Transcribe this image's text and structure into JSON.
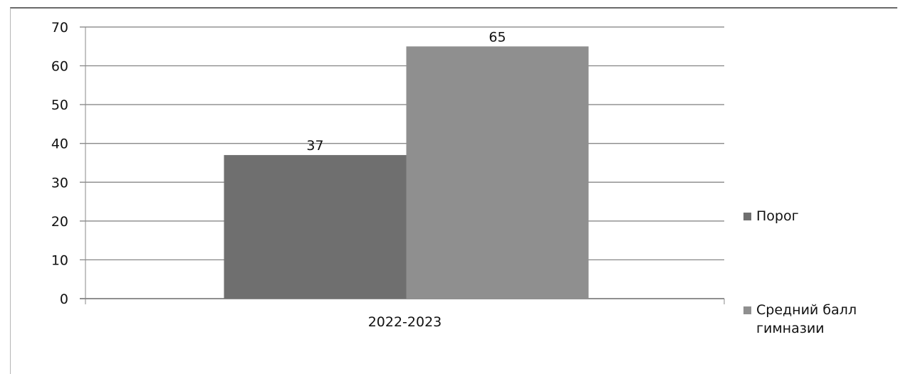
{
  "chart_data": {
    "type": "bar",
    "categories": [
      "2022-2023"
    ],
    "series": [
      {
        "name": "Порог",
        "values": [
          37
        ],
        "label_lines": [
          "Порог"
        ],
        "color": "#6f6f6f"
      },
      {
        "name": "Средний балл гимназии",
        "values": [
          65
        ],
        "label_lines": [
          "Средний балл",
          "гимназии"
        ],
        "color": "#8f8f8f"
      }
    ],
    "data_labels": [
      "37",
      "65"
    ],
    "yticks": [
      0,
      10,
      20,
      30,
      40,
      50,
      60,
      70
    ],
    "ylim": [
      0,
      70
    ],
    "grid": true,
    "legend_position": "right",
    "title": "",
    "xlabel": "",
    "ylabel": ""
  }
}
